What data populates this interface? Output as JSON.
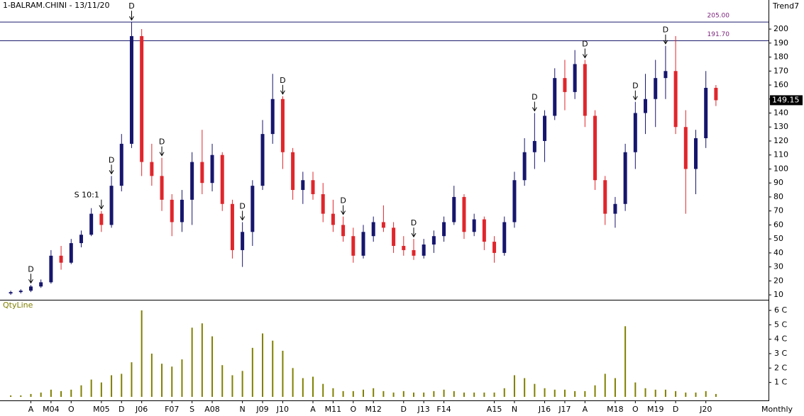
{
  "chart_data": [
    {
      "type": "candlestick",
      "title": "1-BALRAM.CHINI - 13/11/20",
      "label": "Trend7",
      "x_label": "Monthly",
      "categories": [
        null,
        null,
        "A",
        null,
        "M04",
        null,
        "O",
        null,
        null,
        "M05",
        null,
        "D",
        null,
        "J06",
        null,
        null,
        "F07",
        null,
        "S",
        null,
        "A08",
        null,
        null,
        "N",
        null,
        "J09",
        null,
        "J10",
        null,
        null,
        "A",
        null,
        "M11",
        null,
        "O",
        null,
        "M12",
        null,
        null,
        "D",
        null,
        "J13",
        null,
        "F14",
        null,
        null,
        null,
        null,
        "A15",
        null,
        "N",
        null,
        null,
        "J16",
        null,
        "J17",
        null,
        "A",
        null,
        null,
        "M18",
        null,
        "O",
        null,
        "M19",
        null,
        "D",
        null,
        null,
        "J20",
        null
      ],
      "open": [
        11,
        12,
        13,
        16,
        19,
        38,
        33,
        47,
        53,
        68,
        60,
        88,
        118,
        195,
        105,
        95,
        78,
        62,
        78,
        105,
        90,
        110,
        75,
        42,
        55,
        88,
        125,
        150,
        112,
        85,
        92,
        82,
        68,
        60,
        52,
        38,
        52,
        62,
        58,
        45,
        42,
        38,
        46,
        52,
        62,
        80,
        55,
        64,
        48,
        40,
        62,
        92,
        112,
        120,
        138,
        165,
        155,
        175,
        138,
        92,
        68,
        75,
        112,
        140,
        150,
        165,
        170,
        130,
        100,
        122,
        158
      ],
      "high": [
        13,
        14,
        17,
        21,
        42,
        45,
        50,
        56,
        72,
        70,
        95,
        125,
        205,
        200,
        118,
        108,
        82,
        85,
        112,
        128,
        118,
        112,
        78,
        62,
        92,
        135,
        168,
        152,
        115,
        98,
        98,
        90,
        78,
        66,
        58,
        60,
        66,
        74,
        62,
        52,
        50,
        50,
        56,
        66,
        88,
        82,
        68,
        66,
        52,
        66,
        98,
        122,
        140,
        142,
        172,
        178,
        185,
        178,
        142,
        95,
        80,
        118,
        148,
        168,
        178,
        188,
        195,
        142,
        128,
        170,
        160
      ],
      "low": [
        10,
        11,
        12,
        15,
        18,
        28,
        32,
        44,
        52,
        55,
        58,
        84,
        115,
        95,
        88,
        70,
        52,
        55,
        60,
        82,
        84,
        70,
        36,
        30,
        45,
        85,
        118,
        100,
        78,
        75,
        78,
        62,
        55,
        48,
        33,
        36,
        48,
        55,
        40,
        38,
        35,
        36,
        40,
        48,
        60,
        50,
        52,
        42,
        33,
        38,
        58,
        88,
        100,
        105,
        135,
        142,
        150,
        130,
        85,
        60,
        58,
        70,
        100,
        125,
        130,
        150,
        125,
        68,
        82,
        115,
        145
      ],
      "close": [
        12,
        13,
        16,
        19,
        38,
        33,
        47,
        53,
        68,
        60,
        88,
        118,
        195,
        105,
        95,
        78,
        62,
        78,
        105,
        90,
        110,
        75,
        42,
        55,
        88,
        125,
        150,
        112,
        85,
        92,
        82,
        68,
        60,
        52,
        38,
        55,
        62,
        58,
        45,
        42,
        38,
        46,
        52,
        62,
        80,
        55,
        64,
        48,
        40,
        62,
        92,
        112,
        120,
        138,
        165,
        155,
        175,
        138,
        92,
        68,
        75,
        112,
        140,
        150,
        165,
        170,
        130,
        100,
        122,
        158,
        149.15
      ],
      "events": [
        null,
        null,
        "D",
        null,
        null,
        null,
        null,
        null,
        null,
        "S 10:1",
        "D",
        null,
        "D",
        null,
        null,
        "D",
        null,
        null,
        null,
        null,
        null,
        null,
        null,
        "D",
        null,
        null,
        null,
        "D",
        null,
        null,
        null,
        null,
        null,
        "D",
        null,
        null,
        null,
        null,
        null,
        null,
        "D",
        null,
        null,
        null,
        null,
        null,
        null,
        null,
        null,
        null,
        null,
        null,
        "D",
        null,
        null,
        null,
        null,
        "D",
        null,
        null,
        null,
        null,
        "D",
        null,
        null,
        "D",
        null,
        null,
        null,
        null,
        null
      ],
      "up_color": "#16166e",
      "down_color": "#e0262b",
      "ylim": [
        6.5,
        220.8
      ],
      "yticks": [
        10,
        20,
        30,
        40,
        50,
        60,
        70,
        80,
        90,
        100,
        110,
        120,
        130,
        140,
        150,
        160,
        170,
        180,
        190,
        200
      ],
      "hlines": [
        {
          "value": 205,
          "label": "205.00"
        },
        {
          "value": 191.7,
          "label": "191.70"
        }
      ],
      "last_price": 149.15
    },
    {
      "type": "bar",
      "label": "QtyLine",
      "color": "#808000",
      "values": [
        0.1,
        0.1,
        0.2,
        0.3,
        0.5,
        0.4,
        0.5,
        0.8,
        1.2,
        1.0,
        1.5,
        1.6,
        2.4,
        6.0,
        3.0,
        2.3,
        2.1,
        2.6,
        4.8,
        5.1,
        4.2,
        2.2,
        1.5,
        1.8,
        3.4,
        4.4,
        3.9,
        3.2,
        2.0,
        1.3,
        1.4,
        0.9,
        0.6,
        0.4,
        0.4,
        0.5,
        0.6,
        0.4,
        0.3,
        0.4,
        0.3,
        0.3,
        0.4,
        0.5,
        0.4,
        0.3,
        0.3,
        0.3,
        0.3,
        0.6,
        1.5,
        1.3,
        0.9,
        0.6,
        0.5,
        0.5,
        0.4,
        0.4,
        0.8,
        1.6,
        1.3,
        4.9,
        1.0,
        0.6,
        0.5,
        0.5,
        0.4,
        0.3,
        0.3,
        0.4,
        0.2
      ],
      "ylim": [
        0,
        6.49
      ],
      "yticks": [
        {
          "value": 1,
          "label": "1 C"
        },
        {
          "value": 2,
          "label": "2 C"
        },
        {
          "value": 3,
          "label": "3 C"
        },
        {
          "value": 4,
          "label": "4 C"
        },
        {
          "value": 5,
          "label": "5 C"
        },
        {
          "value": 6,
          "label": "6 C"
        }
      ]
    }
  ]
}
